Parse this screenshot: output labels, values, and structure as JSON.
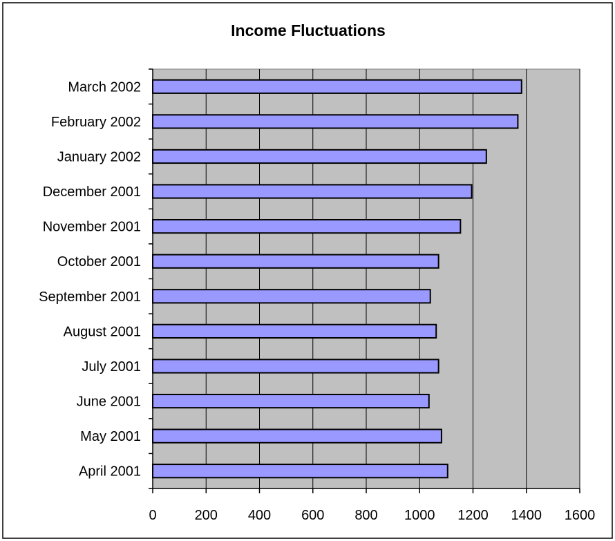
{
  "chart_data": {
    "type": "bar",
    "orientation": "horizontal",
    "title": "Income Fluctuations",
    "xlabel": "",
    "ylabel": "",
    "categories": [
      "April 2001",
      "May 2001",
      "June 2001",
      "July 2001",
      "August 2001",
      "September 2001",
      "October 2001",
      "November 2001",
      "December 2001",
      "January 2002",
      "February 2002",
      "March 2002"
    ],
    "values": [
      1105,
      1082,
      1035,
      1071,
      1062,
      1040,
      1071,
      1153,
      1195,
      1250,
      1368,
      1382
    ],
    "xlim": [
      0,
      1600
    ],
    "xticks": [
      0,
      200,
      400,
      600,
      800,
      1000,
      1200,
      1400,
      1600
    ],
    "grid": "vertical lines at major x ticks",
    "legend": "none",
    "colors": {
      "bar_fill": "#9999ff",
      "bar_stroke": "#000000",
      "plot_background": "#c0c0c0",
      "chart_background": "#ffffff",
      "gridline": "#000000"
    }
  }
}
